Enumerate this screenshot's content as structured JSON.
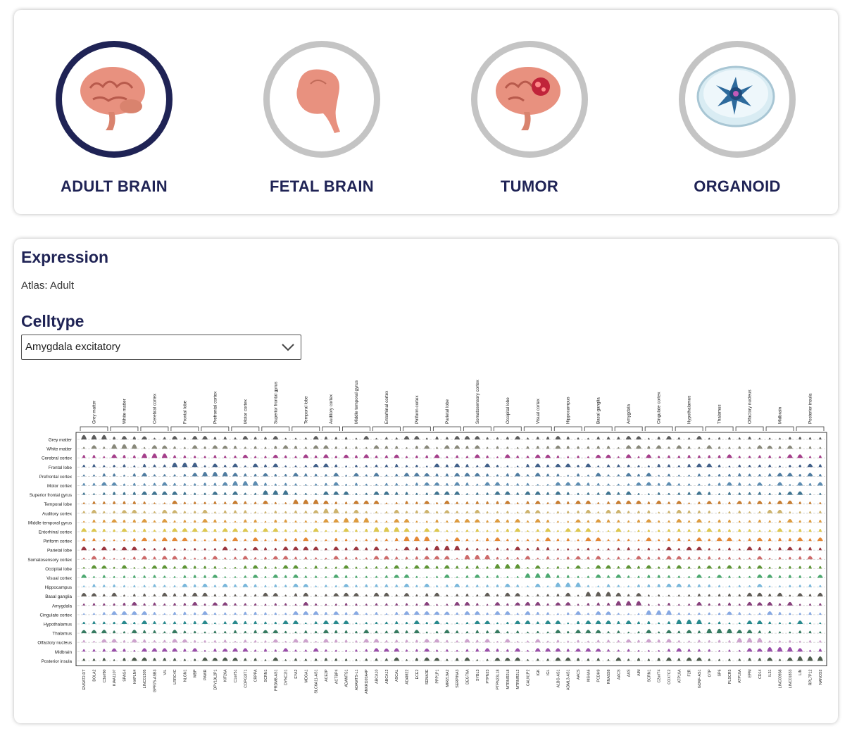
{
  "atlas_options": [
    {
      "label": "ADULT BRAIN",
      "icon": "adult-brain-icon",
      "selected": true
    },
    {
      "label": "FETAL BRAIN",
      "icon": "fetal-brain-icon",
      "selected": false
    },
    {
      "label": "TUMOR",
      "icon": "tumor-brain-icon",
      "selected": false
    },
    {
      "label": "ORGANOID",
      "icon": "organoid-dish-icon",
      "selected": false
    }
  ],
  "expression": {
    "title": "Expression",
    "atlas_line": "Atlas: Adult",
    "celltype_title": "Celltype",
    "celltype_selected": "Amygdala excitatory"
  },
  "colors": {
    "brand": "#1f2355",
    "ring_inactive": "#c4c4c4"
  },
  "chart_data": {
    "type": "violin",
    "regions": [
      "Grey matter",
      "White matter",
      "Cerebral cortex",
      "Frontal lobe",
      "Prefrontal cortex",
      "Motor cortex",
      "Superior frontal gyrus",
      "Temporal lobe",
      "Auditory cortex",
      "Middle temporal gyrus",
      "Entorhinal cortex",
      "Piriform cortex",
      "Parietal lobe",
      "Somatosensory cortex",
      "Occipital lobe",
      "Visual cortex",
      "Hippocampus",
      "Basal ganglia",
      "Amygdala",
      "Cingulate cortex",
      "Hypothalamus",
      "Thalamus",
      "Olfactory nucleus",
      "Midbrain",
      "Posterior insula"
    ],
    "row_colors": [
      "#4a4a4a",
      "#7b7b6b",
      "#9b2a7e",
      "#2c4f7c",
      "#3c6e96",
      "#4a7fa8",
      "#2a6585",
      "#c2701c",
      "#c8ab5c",
      "#d9902a",
      "#d9c23c",
      "#e07a1f",
      "#8f1f2a",
      "#c85a5a",
      "#4d8a1f",
      "#38a060",
      "#6ab0d8",
      "#4f4a44",
      "#7a2b6e",
      "#7aa0e0",
      "#127d82",
      "#1f6b4f",
      "#c898c8",
      "#8e3aa0",
      "#3a4a3a"
    ],
    "groups": [
      {
        "label": "Grey matter",
        "genes": [
          "ENSAT2-DT",
          "BOLA2",
          "C3orf80"
        ]
      },
      {
        "label": "White matter",
        "genes": [
          "KIAA1107",
          "SPAG4",
          "HAPLN4"
        ]
      },
      {
        "label": "Cerebral cortex",
        "genes": [
          "LINC01305",
          "GPR75-ASB3",
          "VIL"
        ]
      },
      {
        "label": "Frontal lobe",
        "genes": [
          "LRRC4C",
          "NLGN1",
          "MBP"
        ]
      },
      {
        "label": "Prefrontal cortex",
        "genes": [
          "PAWR",
          "DPY19L2P1",
          "KIF26A"
        ]
      },
      {
        "label": "Motor cortex",
        "genes": [
          "C1orf51",
          "COPG2IT1",
          "CRPPA"
        ]
      },
      {
        "label": "Superior frontal gyrus",
        "genes": [
          "SCRN1",
          "PRDM8-AS1",
          "DYNC2I1"
        ]
      },
      {
        "label": "Temporal lobe",
        "genes": [
          "EYA2",
          "MDGA1",
          "SLC6A11-AS1"
        ]
      },
      {
        "label": "Auditory cortex",
        "genes": [
          "ACE2P",
          "ACTBP4"
        ]
      },
      {
        "label": "Middle temporal gyrus",
        "genes": [
          "ADAMTS1",
          "ADAMTS-L1",
          "ANKRD20A4P"
        ]
      },
      {
        "label": "Entorhinal cortex",
        "genes": [
          "ABCA10",
          "ABCA12",
          "ASCAL"
        ]
      },
      {
        "label": "Piriform cortex",
        "genes": [
          "ADAM22",
          "ECE2",
          "SEMA3E"
        ]
      },
      {
        "label": "Parietal lobe",
        "genes": [
          "PPP1P1",
          "MIR219A2",
          "SERPINA3"
        ]
      },
      {
        "label": "Somatosensory cortex",
        "genes": [
          "DEGT9A",
          "SYBL3",
          "PTPN23"
        ]
      },
      {
        "label": "Occipital lobe",
        "genes": [
          "PTPN23L18",
          "MTRNR2L8",
          "MTRNR2L2"
        ]
      },
      {
        "label": "Visual cortex",
        "genes": [
          "CALN1P2",
          "IGK",
          "IGL"
        ]
      },
      {
        "label": "Hippocampus",
        "genes": [
          "A1BG-AS1",
          "ADML3-AS1",
          "AACS"
        ]
      },
      {
        "label": "Basal ganglia",
        "genes": [
          "MS4A6",
          "PCDH9",
          "RNA5S8"
        ]
      },
      {
        "label": "Amygdala",
        "genes": [
          "AACS",
          "AAS",
          "AIM"
        ]
      },
      {
        "label": "Cingulate cortex",
        "genes": [
          "SCRN1",
          "C2orf74",
          "COX7C2"
        ]
      },
      {
        "label": "Hypothalamus",
        "genes": [
          "ATP10A",
          "F2R",
          "GDNF-AS1"
        ]
      },
      {
        "label": "Thalamus",
        "genes": [
          "OTP",
          "SP6",
          "PLSCR5"
        ]
      },
      {
        "label": "Olfactory nucleus",
        "genes": [
          "ATP10A",
          "EPM",
          "CD14"
        ]
      },
      {
        "label": "Midbrain",
        "genes": [
          "IL31",
          "LINC00938",
          "LINC01833"
        ]
      },
      {
        "label": "Posterior insula",
        "genes": [
          "LIN",
          "RPL7P12",
          "NANOS2"
        ]
      }
    ]
  }
}
